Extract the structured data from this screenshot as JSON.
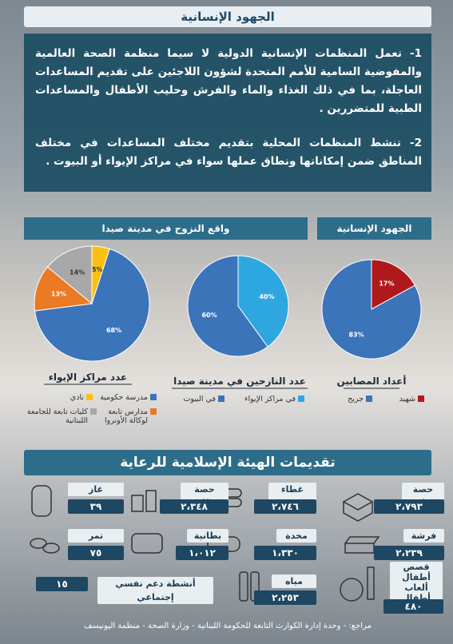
{
  "header": {
    "title": "الجهود الإنسانية"
  },
  "intro": {
    "paragraphs": [
      "1- تعمل المنظمات الإنسانية الدولية لا سيما منظمة الصحة العالمية والمفوضية السامية للأمم المتحدة لشؤون اللاجئين على تقديم المساعدات العاجلة، بما في ذلك الغذاء والماء والفرش وحليب الأطفال والمساعدات الطبية للمتضررين .",
      "2- تنشط المنظمات المحلية بتقديم مختلف المساعدات في مختلف المناطق ضمن إمكاناتها ونطاق عملها سواء في مراكز الإيواء أو البيوت ."
    ]
  },
  "sections": {
    "displacement": "واقع النزوح في مدينة صيدا",
    "efforts": "الجهود الإنسانية",
    "services": "تقديمات الهيئة الإسلامية للرعاية"
  },
  "chart_data": [
    {
      "type": "pie",
      "title": "أعداد المصابين",
      "categories": [
        "شهيد",
        "جريح"
      ],
      "values": [
        17,
        83
      ],
      "value_labels": [
        "17%",
        "83%"
      ],
      "colors": [
        "#b0191b",
        "#3c74ba"
      ]
    },
    {
      "type": "pie",
      "title": "عدد النازحين في مدينة صيدا",
      "categories": [
        "في مراكز الإيواء",
        "في البيوت"
      ],
      "values": [
        40,
        60
      ],
      "value_labels": [
        "40%",
        "60%"
      ],
      "colors": [
        "#2ea7e0",
        "#3c74ba"
      ]
    },
    {
      "type": "pie",
      "title": "عدد مراكز الإيواء",
      "categories": [
        "نادي",
        "مدرسة حكومية",
        "مدارس تابعة لوكالة الأونروا",
        "كليات تابعة للجامعة اللبنانية"
      ],
      "values": [
        5,
        68,
        13,
        14
      ],
      "value_labels": [
        "5%",
        "68%",
        "13%",
        "14%"
      ],
      "colors": [
        "#fcc010",
        "#3c74ba",
        "#eb7a25",
        "#a8a8a8"
      ]
    }
  ],
  "services": [
    {
      "label": "حصة غذائية",
      "value": "٢،٧٩٣"
    },
    {
      "label": "غطاء شتوي",
      "value": "٢،٧٤٦"
    },
    {
      "label": "حصة نظافة",
      "value": "٢،٣٤٨"
    },
    {
      "label": "غاز",
      "value": "٣٩"
    },
    {
      "label": "فرشة",
      "value": "٢،٢٣٩"
    },
    {
      "label": "مخدة",
      "value": "١،٣٣٠"
    },
    {
      "label": "بطانية",
      "value": "١،٠١٢"
    },
    {
      "label": "تمر",
      "value": "٧٥"
    },
    {
      "label": "قصص أطفال ألعاب أطفال حلوى",
      "value": "٤٨٠"
    },
    {
      "label": "مياه",
      "value": "٢،٢٥٣"
    },
    {
      "label": "أنشطة دعم نفسي إجتماعي",
      "value": "١٥"
    }
  ],
  "footer": "مراجع: - وحدة إدارة الكوارث التابعة للحكومة اللبنانية - وزارة الصحة - منظمة اليونيسف"
}
